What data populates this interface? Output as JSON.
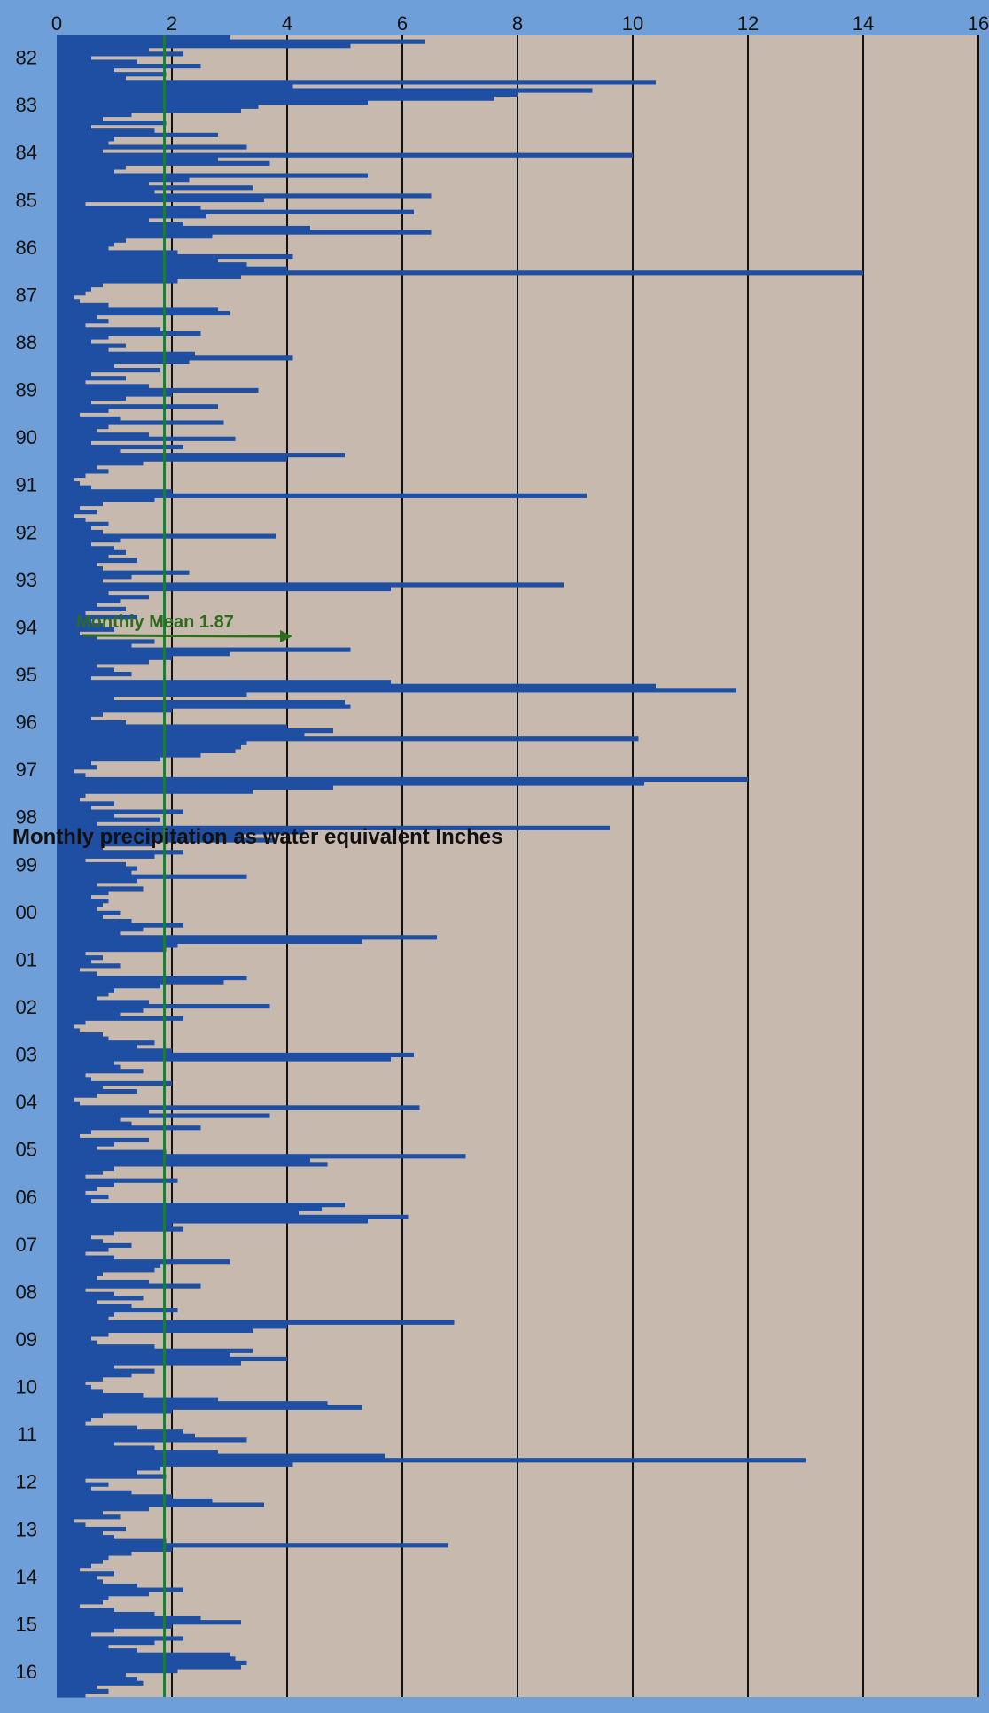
{
  "chart_data": {
    "type": "bar",
    "ylabel": "Monthly precipitation as water equivalent Inches",
    "ylim": [
      0,
      16
    ],
    "y_ticks": [
      "0",
      "2",
      "4",
      "6",
      "8",
      "10",
      "12",
      "14",
      "16"
    ],
    "x_ticks": [
      "82",
      "83",
      "84",
      "85",
      "86",
      "87",
      "88",
      "89",
      "90",
      "91",
      "92",
      "93",
      "94",
      "95",
      "96",
      "97",
      "98",
      "99",
      "00",
      "01",
      "02",
      "03",
      "04",
      "05",
      "06",
      "07",
      "08",
      "09",
      "10",
      "11",
      "12",
      "13",
      "14",
      "15",
      "16"
    ],
    "grid": true,
    "start_label": "82",
    "series": [
      {
        "values": [
          3.0,
          6.4,
          5.1,
          1.6,
          2.2,
          0.6,
          1.4,
          2.5,
          1.0,
          1.9,
          1.2,
          10.4,
          4.1,
          9.3,
          8.0,
          7.6,
          5.4,
          3.5,
          3.2,
          1.3,
          0.8,
          1.9,
          0.6,
          1.7,
          2.8,
          1.0,
          0.9,
          3.3,
          0.8,
          10.0,
          2.8,
          3.7,
          1.2,
          1.0,
          5.4,
          2.3,
          1.6,
          3.4,
          1.7,
          6.5,
          3.6,
          0.5,
          2.5,
          6.2,
          2.6,
          1.6,
          2.2,
          4.4,
          6.5,
          2.7,
          1.2,
          1.0,
          0.9,
          2.1,
          4.1,
          2.8,
          3.3,
          4.0,
          14.0,
          3.2,
          2.1,
          0.8,
          0.6,
          0.5,
          0.3,
          0.4,
          0.9,
          2.8,
          3.0,
          0.7,
          0.9,
          0.5,
          1.8,
          2.5,
          0.9,
          0.6,
          1.2,
          0.9,
          2.4,
          4.1,
          2.3,
          1.0,
          1.8,
          0.6,
          1.2,
          0.5,
          1.6,
          3.5,
          2.0,
          1.2,
          0.6,
          2.8,
          0.9,
          0.4,
          1.1,
          2.9,
          0.9,
          0.7,
          1.6,
          3.1,
          0.6,
          2.2,
          1.1,
          5.0,
          4.0,
          1.5,
          0.7,
          0.9,
          0.5,
          0.3,
          0.4,
          0.6,
          2.0,
          9.2,
          1.7,
          0.8,
          0.4,
          0.7,
          0.3,
          0.5,
          0.9,
          0.6,
          0.8,
          3.8,
          1.1,
          0.6,
          1.0,
          1.2,
          0.9,
          1.4,
          0.7,
          0.8,
          2.3,
          1.3,
          0.8,
          8.8,
          5.8,
          0.9,
          1.6,
          1.1,
          0.7,
          1.2,
          0.5,
          1.4,
          0.6,
          0.8,
          1.0,
          0.4,
          0.7,
          1.7,
          1.3,
          5.1,
          3.0,
          2.0,
          1.6,
          0.7,
          1.0,
          1.3,
          0.6,
          5.8,
          10.4,
          11.8,
          3.3,
          1.0,
          5.0,
          5.1,
          2.0,
          0.8,
          0.6,
          1.2,
          4.0,
          4.8,
          4.3,
          10.1,
          3.3,
          3.2,
          3.1,
          2.5,
          1.8,
          0.6,
          0.7,
          0.3,
          0.5,
          12.0,
          10.2,
          4.8,
          3.4,
          0.5,
          0.4,
          1.0,
          0.6,
          2.2,
          1.0,
          1.8,
          0.7,
          9.6,
          4.3,
          3.2,
          3.8,
          1.7,
          0.8,
          2.2,
          1.7,
          0.5,
          1.2,
          1.4,
          1.3,
          3.3,
          1.4,
          0.7,
          1.5,
          0.9,
          0.6,
          0.9,
          0.8,
          0.7,
          1.1,
          0.8,
          1.3,
          2.2,
          1.5,
          1.1,
          6.6,
          5.3,
          2.1,
          1.9,
          0.5,
          0.8,
          0.6,
          1.1,
          0.4,
          0.7,
          3.3,
          2.9,
          1.8,
          1.0,
          0.9,
          0.7,
          1.6,
          3.7,
          1.5,
          1.1,
          2.2,
          0.5,
          0.3,
          0.4,
          0.8,
          0.9,
          1.7,
          1.4,
          2.0,
          6.2,
          5.8,
          1.0,
          1.1,
          1.5,
          0.5,
          0.6,
          2.0,
          0.8,
          1.4,
          0.7,
          0.3,
          0.4,
          6.3,
          1.6,
          3.7,
          1.1,
          1.3,
          2.5,
          0.6,
          0.4,
          1.6,
          1.0,
          0.7,
          1.9,
          7.1,
          4.4,
          4.7,
          1.0,
          0.8,
          0.5,
          2.1,
          1.0,
          0.7,
          0.5,
          0.9,
          0.6,
          5.0,
          4.6,
          4.2,
          6.1,
          5.4,
          2.0,
          2.2,
          1.0,
          0.6,
          0.8,
          1.3,
          0.9,
          0.5,
          1.0,
          3.0,
          1.8,
          1.7,
          0.8,
          0.7,
          1.6,
          2.5,
          0.5,
          1.0,
          1.5,
          0.7,
          1.3,
          2.1,
          1.0,
          0.9,
          6.9,
          4.0,
          3.4,
          0.9,
          0.6,
          0.7,
          1.7,
          3.4,
          3.0,
          4.0,
          3.2,
          1.0,
          1.7,
          1.3,
          0.8,
          0.5,
          0.6,
          0.8,
          1.5,
          2.8,
          4.7,
          5.3,
          2.0,
          0.8,
          0.6,
          0.5,
          1.4,
          2.2,
          2.4,
          3.3,
          1.0,
          1.7,
          2.8,
          5.7,
          13.0,
          4.1,
          1.8,
          1.4,
          1.9,
          0.5,
          0.9,
          0.6,
          1.3,
          2.0,
          2.7,
          3.6,
          1.6,
          0.8,
          1.1,
          0.3,
          0.5,
          1.2,
          0.8,
          1.0,
          1.9,
          6.8,
          2.0,
          1.3,
          0.9,
          0.8,
          0.6,
          0.4,
          1.0,
          0.7,
          0.8,
          1.4,
          2.2,
          1.6,
          0.9,
          0.8,
          0.4,
          1.0,
          1.7,
          2.5,
          3.2,
          2.0,
          1.0,
          0.6,
          2.2,
          1.7,
          0.9,
          1.4,
          3.0,
          3.1,
          3.3,
          3.2,
          2.1,
          1.2,
          1.4,
          1.5,
          0.7,
          0.9,
          0.5
        ]
      }
    ],
    "mean": 1.87,
    "annotation": "Monthly Mean 1.87"
  }
}
